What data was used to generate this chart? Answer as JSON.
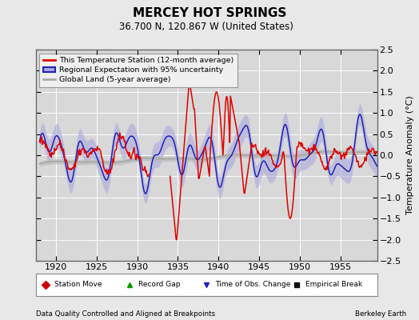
{
  "title": "MERCEY HOT SPRINGS",
  "subtitle": "36.700 N, 120.867 W (United States)",
  "ylabel": "Temperature Anomaly (°C)",
  "bottom_left_text": "Data Quality Controlled and Aligned at Breakpoints",
  "bottom_right_text": "Berkeley Earth",
  "xlim": [
    1917.5,
    1959.5
  ],
  "ylim": [
    -2.5,
    2.5
  ],
  "yticks": [
    -2.5,
    -2.0,
    -1.5,
    -1.0,
    -0.5,
    0.0,
    0.5,
    1.0,
    1.5,
    2.0,
    2.5
  ],
  "xticks": [
    1920,
    1925,
    1930,
    1935,
    1940,
    1945,
    1950,
    1955
  ],
  "bg_color": "#e8e8e8",
  "plot_bg_color": "#d8d8d8",
  "grid_color": "#ffffff",
  "red_color": "#dd0000",
  "blue_color": "#2020bb",
  "blue_fill_color": "#aaaadd",
  "gray_line_color": "#aaaaaa",
  "gray_fill_color": "#bbbbbb",
  "legend_bg": "#f0f0f0",
  "bottom_legend_bg": "#ffffff",
  "marker_red": "#cc0000",
  "marker_green": "#009900",
  "marker_blue": "#2020bb",
  "marker_black": "#111111"
}
